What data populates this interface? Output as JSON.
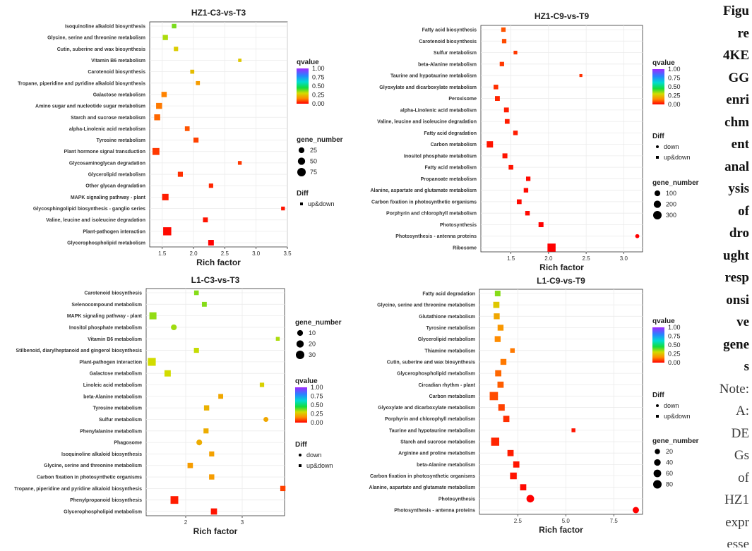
{
  "chart_data": [
    {
      "type": "scatter",
      "title": "HZ1-C3-vs-T3",
      "xlabel": "Rich factor",
      "xlim": [
        1.3,
        3.5
      ],
      "xticks": [
        1.5,
        2.0,
        2.5,
        3.0,
        3.5
      ],
      "xtick_labels": [
        "1.5",
        "2.0",
        "2.5",
        "3.0",
        "3.5"
      ],
      "categories": [
        "Isoquinoline alkaloid biosynthesis",
        "Glycine, serine and threonine metabolism",
        "Cutin, suberine and wax biosynthesis",
        "Vitamin B6 metabolism",
        "Carotenoid biosynthesis",
        "Tropane, piperidine and pyridine alkaloid biosynthesis",
        "Galactose metabolism",
        "Amino sugar and nucleotide sugar metabolism",
        "Starch and sucrose metabolism",
        "alpha-Linolenic acid metabolism",
        "Tyrosine metabolism",
        "Plant hormone signal transduction",
        "Glycosaminoglycan degradation",
        "Glycerolipid metabolism",
        "Other glycan degradation",
        "MAPK signaling pathway - plant",
        "Glycosphingolipid biosynthesis - ganglio series",
        "Valine, leucine and isoleucine degradation",
        "Plant-pathogen interaction",
        "Glycerophospholipid metabolism"
      ],
      "points": [
        {
          "x": 1.69,
          "qvalue": 0.37,
          "gene_number": 14,
          "diff": "up&down"
        },
        {
          "x": 1.55,
          "qvalue": 0.33,
          "gene_number": 22,
          "diff": "up&down"
        },
        {
          "x": 1.72,
          "qvalue": 0.27,
          "gene_number": 12,
          "diff": "up&down"
        },
        {
          "x": 2.74,
          "qvalue": 0.26,
          "gene_number": 4,
          "diff": "up&down"
        },
        {
          "x": 1.98,
          "qvalue": 0.24,
          "gene_number": 9,
          "diff": "up&down"
        },
        {
          "x": 2.07,
          "qvalue": 0.18,
          "gene_number": 9,
          "diff": "up&down"
        },
        {
          "x": 1.53,
          "qvalue": 0.14,
          "gene_number": 24,
          "diff": "up&down"
        },
        {
          "x": 1.45,
          "qvalue": 0.13,
          "gene_number": 34,
          "diff": "up&down"
        },
        {
          "x": 1.42,
          "qvalue": 0.11,
          "gene_number": 34,
          "diff": "up&down"
        },
        {
          "x": 1.9,
          "qvalue": 0.09,
          "gene_number": 16,
          "diff": "up&down"
        },
        {
          "x": 2.04,
          "qvalue": 0.07,
          "gene_number": 20,
          "diff": "up&down"
        },
        {
          "x": 1.4,
          "qvalue": 0.06,
          "gene_number": 52,
          "diff": "up&down"
        },
        {
          "x": 2.74,
          "qvalue": 0.06,
          "gene_number": 7,
          "diff": "up&down"
        },
        {
          "x": 1.79,
          "qvalue": 0.05,
          "gene_number": 20,
          "diff": "up&down"
        },
        {
          "x": 2.28,
          "qvalue": 0.04,
          "gene_number": 12,
          "diff": "up&down"
        },
        {
          "x": 1.55,
          "qvalue": 0.03,
          "gene_number": 42,
          "diff": "up&down"
        },
        {
          "x": 3.43,
          "qvalue": 0.02,
          "gene_number": 7,
          "diff": "up&down"
        },
        {
          "x": 2.19,
          "qvalue": 0.02,
          "gene_number": 18,
          "diff": "up&down"
        },
        {
          "x": 1.58,
          "qvalue": 0.01,
          "gene_number": 80,
          "diff": "up&down"
        },
        {
          "x": 2.28,
          "qvalue": 0.0,
          "gene_number": 28,
          "diff": "up&down"
        }
      ],
      "legend": {
        "qvalue_title": "qvalue",
        "qvalue_ticks": [
          "1.00",
          "0.75",
          "0.50",
          "0.25",
          "0.00"
        ],
        "gene_number_title": "gene_number",
        "gene_number_values": [
          25,
          50,
          75
        ],
        "diff_title": "Diff",
        "diff_values": [
          "up&down"
        ]
      }
    },
    {
      "type": "scatter",
      "title": "HZ1-C9-vs-T9",
      "xlabel": "Rich factor",
      "xlim": [
        1.1,
        3.25
      ],
      "xticks": [
        1.5,
        2.0,
        2.5,
        3.0
      ],
      "xtick_labels": [
        "1.5",
        "2.0",
        "2.5",
        "3.0"
      ],
      "categories": [
        "Fatty acid biosynthesis",
        "Carotenoid biosynthesis",
        "Sulfur metabolism",
        "beta-Alanine metabolism",
        "Taurine and hypotaurine metabolism",
        "Glyoxylate and dicarboxylate metabolism",
        "Peroxisome",
        "alpha-Linolenic acid metabolism",
        "Valine, leucine and isoleucine degradation",
        "Fatty acid degradation",
        "Carbon metabolism",
        "Inositol phosphate metabolism",
        "Fatty acid metabolism",
        "Propanoate metabolism",
        "Alanine, aspartate and glutamate metabolism",
        "Carbon fixation in photosynthetic organisms",
        "Porphyrin and chlorophyll metabolism",
        "Photosynthesis",
        "Photosynthesis - antenna proteins",
        "Ribosome"
      ],
      "points": [
        {
          "x": 1.4,
          "qvalue": 0.09,
          "gene_number": 50,
          "diff": "up&down"
        },
        {
          "x": 1.41,
          "qvalue": 0.08,
          "gene_number": 50,
          "diff": "up&down"
        },
        {
          "x": 1.56,
          "qvalue": 0.06,
          "gene_number": 25,
          "diff": "up&down"
        },
        {
          "x": 1.38,
          "qvalue": 0.06,
          "gene_number": 50,
          "diff": "up&down"
        },
        {
          "x": 2.43,
          "qvalue": 0.05,
          "gene_number": 8,
          "diff": "up&down"
        },
        {
          "x": 1.3,
          "qvalue": 0.05,
          "gene_number": 60,
          "diff": "up&down"
        },
        {
          "x": 1.32,
          "qvalue": 0.04,
          "gene_number": 70,
          "diff": "up&down"
        },
        {
          "x": 1.44,
          "qvalue": 0.03,
          "gene_number": 70,
          "diff": "up&down"
        },
        {
          "x": 1.45,
          "qvalue": 0.03,
          "gene_number": 65,
          "diff": "up&down"
        },
        {
          "x": 1.56,
          "qvalue": 0.03,
          "gene_number": 55,
          "diff": "up&down"
        },
        {
          "x": 1.22,
          "qvalue": 0.02,
          "gene_number": 160,
          "diff": "up&down"
        },
        {
          "x": 1.42,
          "qvalue": 0.02,
          "gene_number": 75,
          "diff": "up&down"
        },
        {
          "x": 1.5,
          "qvalue": 0.02,
          "gene_number": 60,
          "diff": "up&down"
        },
        {
          "x": 1.73,
          "qvalue": 0.01,
          "gene_number": 50,
          "diff": "up&down"
        },
        {
          "x": 1.7,
          "qvalue": 0.01,
          "gene_number": 55,
          "diff": "up&down"
        },
        {
          "x": 1.61,
          "qvalue": 0.01,
          "gene_number": 65,
          "diff": "up&down"
        },
        {
          "x": 1.72,
          "qvalue": 0.01,
          "gene_number": 55,
          "diff": "up&down"
        },
        {
          "x": 1.9,
          "qvalue": 0.0,
          "gene_number": 75,
          "diff": "up&down"
        },
        {
          "x": 3.18,
          "qvalue": 0.0,
          "gene_number": 30,
          "diff": "down"
        },
        {
          "x": 2.04,
          "qvalue": 0.0,
          "gene_number": 320,
          "diff": "up&down"
        }
      ],
      "legend": {
        "qvalue_title": "qvalue",
        "qvalue_ticks": [
          "1.00",
          "0.75",
          "0.50",
          "0.25",
          "0.00"
        ],
        "gene_number_title": "gene_number",
        "gene_number_values": [
          100,
          200,
          300
        ],
        "diff_title": "Diff",
        "diff_values": [
          "down",
          "up&down"
        ]
      }
    },
    {
      "type": "scatter",
      "title": "L1-C3-vs-T3",
      "xlabel": "Rich factor",
      "xlim": [
        1.3,
        3.75
      ],
      "xticks": [
        2,
        3
      ],
      "xtick_labels": [
        "2",
        "3"
      ],
      "categories": [
        "Carotenoid biosynthesis",
        "Selenocompound metabolism",
        "MAPK signaling pathway - plant",
        "Inositol phosphate metabolism",
        "Vitamin B6 metabolism",
        "Stilbenoid, diarylheptanoid and gingerol biosynthesis",
        "Plant-pathogen interaction",
        "Galactose metabolism",
        "Linoleic acid metabolism",
        "beta-Alanine metabolism",
        "Tyrosine metabolism",
        "Sulfur metabolism",
        "Phenylalanine metabolism",
        "Phagosome",
        "Isoquinoline alkaloid biosynthesis",
        "Glycine, serine and threonine metabolism",
        "Carbon fixation in photosynthetic organisms",
        "Tropane, piperidine and pyridine alkaloid biosynthesis",
        "Phenylpropanoid biosynthesis",
        "Glycerophospholipid metabolism"
      ],
      "points": [
        {
          "x": 2.19,
          "qvalue": 0.36,
          "gene_number": 6,
          "diff": "up&down"
        },
        {
          "x": 2.33,
          "qvalue": 0.36,
          "gene_number": 7,
          "diff": "up&down"
        },
        {
          "x": 1.42,
          "qvalue": 0.35,
          "gene_number": 22,
          "diff": "up&down"
        },
        {
          "x": 1.79,
          "qvalue": 0.34,
          "gene_number": 10,
          "diff": "down"
        },
        {
          "x": 3.63,
          "qvalue": 0.33,
          "gene_number": 3,
          "diff": "up&down"
        },
        {
          "x": 2.19,
          "qvalue": 0.31,
          "gene_number": 8,
          "diff": "up&down"
        },
        {
          "x": 1.4,
          "qvalue": 0.3,
          "gene_number": 30,
          "diff": "up&down"
        },
        {
          "x": 1.68,
          "qvalue": 0.3,
          "gene_number": 16,
          "diff": "up&down"
        },
        {
          "x": 3.35,
          "qvalue": 0.28,
          "gene_number": 5,
          "diff": "up&down"
        },
        {
          "x": 2.62,
          "qvalue": 0.2,
          "gene_number": 7,
          "diff": "up&down"
        },
        {
          "x": 2.37,
          "qvalue": 0.22,
          "gene_number": 9,
          "diff": "up&down"
        },
        {
          "x": 3.42,
          "qvalue": 0.2,
          "gene_number": 6,
          "diff": "down"
        },
        {
          "x": 2.36,
          "qvalue": 0.21,
          "gene_number": 8,
          "diff": "up&down"
        },
        {
          "x": 2.24,
          "qvalue": 0.21,
          "gene_number": 10,
          "diff": "down"
        },
        {
          "x": 2.46,
          "qvalue": 0.19,
          "gene_number": 8,
          "diff": "up&down"
        },
        {
          "x": 2.08,
          "qvalue": 0.18,
          "gene_number": 10,
          "diff": "up&down"
        },
        {
          "x": 2.46,
          "qvalue": 0.18,
          "gene_number": 9,
          "diff": "up&down"
        },
        {
          "x": 3.72,
          "qvalue": 0.07,
          "gene_number": 9,
          "diff": "up&down"
        },
        {
          "x": 1.8,
          "qvalue": 0.03,
          "gene_number": 28,
          "diff": "up&down"
        },
        {
          "x": 2.5,
          "qvalue": 0.02,
          "gene_number": 15,
          "diff": "up&down"
        }
      ],
      "legend": {
        "qvalue_title": "qvalue",
        "qvalue_ticks": [
          "1.00",
          "0.75",
          "0.50",
          "0.25",
          "0.00"
        ],
        "gene_number_title": "gene_number",
        "gene_number_values": [
          10,
          20,
          30
        ],
        "diff_title": "Diff",
        "diff_values": [
          "down",
          "up&down"
        ]
      }
    },
    {
      "type": "scatter",
      "title": "L1-C9-vs-T9",
      "xlabel": "Rich factor",
      "xlim": [
        0.5,
        9.0
      ],
      "xticks": [
        2.5,
        5.0,
        7.5
      ],
      "xtick_labels": [
        "2.5",
        "5.0",
        "7.5"
      ],
      "categories": [
        "Fatty acid degradation",
        "Glycine, serine and threonine metabolism",
        "Glutathione metabolism",
        "Tyrosine metabolism",
        "Glycerolipid metabolism",
        "Thiamine metabolism",
        "Cutin, suberine and wax biosynthesis",
        "Glycerophospholipid metabolism",
        "Circadian rhythm - plant",
        "Carbon metabolism",
        "Glyoxylate and dicarboxylate metabolism",
        "Porphyrin and chlorophyll metabolism",
        "Taurine and hypotaurine metabolism",
        "Starch and sucrose metabolism",
        "Arginine and proline metabolism",
        "beta-Alanine metabolism",
        "Carbon fixation in photosynthetic organisms",
        "Alanine, aspartate and glutamate metabolism",
        "Photosynthesis",
        "Photosynthesis - antenna proteins"
      ],
      "points": [
        {
          "x": 1.45,
          "qvalue": 0.36,
          "gene_number": 30,
          "diff": "up&down"
        },
        {
          "x": 1.38,
          "qvalue": 0.26,
          "gene_number": 40,
          "diff": "up&down"
        },
        {
          "x": 1.4,
          "qvalue": 0.2,
          "gene_number": 35,
          "diff": "up&down"
        },
        {
          "x": 1.6,
          "qvalue": 0.17,
          "gene_number": 35,
          "diff": "up&down"
        },
        {
          "x": 1.45,
          "qvalue": 0.15,
          "gene_number": 35,
          "diff": "up&down"
        },
        {
          "x": 2.22,
          "qvalue": 0.13,
          "gene_number": 15,
          "diff": "up&down"
        },
        {
          "x": 1.75,
          "qvalue": 0.13,
          "gene_number": 35,
          "diff": "up&down"
        },
        {
          "x": 1.48,
          "qvalue": 0.11,
          "gene_number": 40,
          "diff": "up&down"
        },
        {
          "x": 1.6,
          "qvalue": 0.1,
          "gene_number": 40,
          "diff": "up&down"
        },
        {
          "x": 1.25,
          "qvalue": 0.08,
          "gene_number": 90,
          "diff": "up&down"
        },
        {
          "x": 1.65,
          "qvalue": 0.07,
          "gene_number": 45,
          "diff": "up&down"
        },
        {
          "x": 1.9,
          "qvalue": 0.05,
          "gene_number": 40,
          "diff": "up&down"
        },
        {
          "x": 5.4,
          "qvalue": 0.02,
          "gene_number": 8,
          "diff": "up&down"
        },
        {
          "x": 1.32,
          "qvalue": 0.04,
          "gene_number": 85,
          "diff": "up&down"
        },
        {
          "x": 2.12,
          "qvalue": 0.03,
          "gene_number": 40,
          "diff": "up&down"
        },
        {
          "x": 2.42,
          "qvalue": 0.02,
          "gene_number": 40,
          "diff": "up&down"
        },
        {
          "x": 2.27,
          "qvalue": 0.02,
          "gene_number": 50,
          "diff": "up&down"
        },
        {
          "x": 2.78,
          "qvalue": 0.01,
          "gene_number": 40,
          "diff": "up&down"
        },
        {
          "x": 3.15,
          "qvalue": 0.0,
          "gene_number": 60,
          "diff": "down"
        },
        {
          "x": 8.65,
          "qvalue": 0.0,
          "gene_number": 35,
          "diff": "down"
        }
      ],
      "legend": {
        "qvalue_title": "qvalue",
        "qvalue_ticks": [
          "1.00",
          "0.75",
          "0.50",
          "0.25",
          "0.00"
        ],
        "gene_number_title": "gene_number",
        "gene_number_values": [
          20,
          40,
          60,
          80
        ],
        "diff_title": "Diff",
        "diff_values": [
          "down",
          "up&down"
        ]
      }
    }
  ],
  "caption": {
    "bold_lines": [
      "Figu",
      "re",
      "4KE",
      "GG",
      "enri",
      "chm",
      "ent",
      "anal",
      "ysis",
      "of",
      "dro",
      "ught",
      "resp",
      "onsi",
      "ve",
      "gene",
      "s"
    ],
    "light_lines": [
      "Note:",
      "A:",
      "DE",
      "Gs",
      "of",
      "HZ1",
      "expr",
      "esse"
    ]
  }
}
